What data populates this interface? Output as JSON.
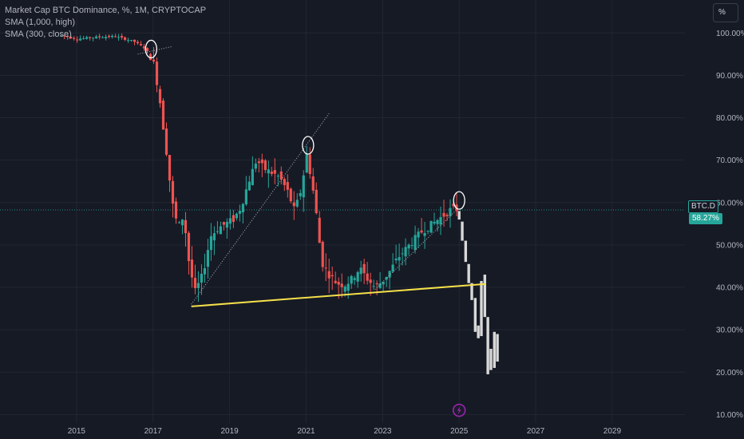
{
  "legend": {
    "title": "Market Cap BTC Dominance, %, 1M, CRYPTOCAP",
    "indicators": [
      "SMA (1,000, high)",
      "SMA (300, close)"
    ]
  },
  "scale_button": "%",
  "price_label": {
    "symbol": "BTC.D",
    "value": "58.27%"
  },
  "colors": {
    "background": "#161a25",
    "grid": "#222631",
    "axis_text": "#b2b5be",
    "up": "#26a69a",
    "down": "#ef5350",
    "projection": "#d8d8d8",
    "trendline": "#f5e04a",
    "current": "#26a69a",
    "event": "#9c27b0"
  },
  "chart_data": {
    "type": "candlestick",
    "interval": "1M",
    "x_ticks": [
      "2015",
      "2017",
      "2019",
      "2021",
      "2023",
      "2025",
      "2027",
      "2029"
    ],
    "y_ticks": [
      "100.00%",
      "90.00%",
      "80.00%",
      "70.00%",
      "60.00%",
      "50.00%",
      "40.00%",
      "30.00%",
      "20.00%",
      "10.00%"
    ],
    "ylim": [
      8,
      104
    ],
    "xlim": [
      2013.0,
      2030.9
    ],
    "current_price": 58.27,
    "series": [
      {
        "name": "BTC.D",
        "anchors": [
          [
            2014.6,
            99.4
          ],
          [
            2015.0,
            98.6
          ],
          [
            2015.5,
            99.0
          ],
          [
            2016.0,
            99.2
          ],
          [
            2016.5,
            98.0
          ],
          [
            2016.8,
            96.3
          ],
          [
            2017.0,
            93.5
          ],
          [
            2017.15,
            86.0
          ],
          [
            2017.35,
            72.0
          ],
          [
            2017.5,
            60.0
          ],
          [
            2017.65,
            54.0
          ],
          [
            2017.8,
            57.0
          ],
          [
            2017.95,
            45.0
          ],
          [
            2018.1,
            39.0
          ],
          [
            2018.3,
            43.0
          ],
          [
            2018.5,
            52.0
          ],
          [
            2018.7,
            54.0
          ],
          [
            2018.9,
            55.0
          ],
          [
            2019.1,
            56.0
          ],
          [
            2019.3,
            59.0
          ],
          [
            2019.5,
            65.0
          ],
          [
            2019.7,
            70.0
          ],
          [
            2019.9,
            68.0
          ],
          [
            2020.1,
            67.0
          ],
          [
            2020.3,
            66.0
          ],
          [
            2020.5,
            63.0
          ],
          [
            2020.7,
            58.0
          ],
          [
            2020.9,
            64.0
          ],
          [
            2021.0,
            72.0
          ],
          [
            2021.15,
            65.0
          ],
          [
            2021.3,
            55.0
          ],
          [
            2021.4,
            46.0
          ],
          [
            2021.6,
            43.0
          ],
          [
            2021.8,
            41.0
          ],
          [
            2022.0,
            40.5
          ],
          [
            2022.2,
            42.0
          ],
          [
            2022.4,
            44.5
          ],
          [
            2022.6,
            42.0
          ],
          [
            2022.8,
            40.0
          ],
          [
            2023.0,
            41.5
          ],
          [
            2023.2,
            44.0
          ],
          [
            2023.4,
            47.0
          ],
          [
            2023.6,
            49.0
          ],
          [
            2023.8,
            51.0
          ],
          [
            2024.0,
            53.0
          ],
          [
            2024.3,
            55.0
          ],
          [
            2024.6,
            57.0
          ],
          [
            2024.8,
            58.5
          ],
          [
            2024.95,
            58.3
          ]
        ]
      },
      {
        "name": "projection",
        "bars": [
          [
            2025.0,
            58,
            56
          ],
          [
            2025.08,
            55.5,
            51
          ],
          [
            2025.17,
            51.0,
            46
          ],
          [
            2025.25,
            45.5,
            41
          ],
          [
            2025.33,
            41.0,
            37
          ],
          [
            2025.42,
            37.5,
            29.5
          ],
          [
            2025.5,
            31.0,
            28.0
          ],
          [
            2025.58,
            41.5,
            28.5
          ],
          [
            2025.67,
            43.0,
            33.0
          ],
          [
            2025.75,
            33.0,
            19.5
          ],
          [
            2025.83,
            25.5,
            20.5
          ],
          [
            2025.92,
            29.5,
            21.0
          ],
          [
            2026.0,
            29.0,
            22.5
          ]
        ]
      }
    ],
    "annotations": {
      "trendline": {
        "from": [
          2018.0,
          35.5
        ],
        "to": [
          2025.7,
          40.8
        ]
      },
      "dotted_lines": [
        {
          "from": [
            2018.0,
            36.0
          ],
          "to": [
            2021.6,
            81.0
          ]
        },
        {
          "from": [
            2022.8,
            39.5
          ],
          "to": [
            2024.9,
            58.0
          ]
        },
        {
          "from": [
            2016.6,
            95.0
          ],
          "to": [
            2017.5,
            96.8
          ]
        }
      ],
      "circles": [
        {
          "at": [
            2016.95,
            96.2
          ]
        },
        {
          "at": [
            2021.05,
            73.5
          ]
        },
        {
          "at": [
            2025.0,
            60.5
          ]
        }
      ],
      "event_marker": {
        "at": 2025.0
      }
    }
  }
}
